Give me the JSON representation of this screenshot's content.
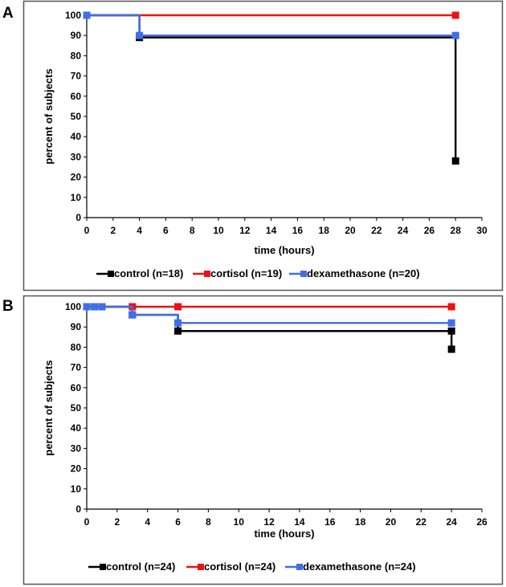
{
  "chart_data": [
    {
      "type": "line",
      "panel": "A",
      "xlabel": "time (hours)",
      "ylabel": "percent of subjects",
      "xlim": [
        0,
        30
      ],
      "ylim": [
        0,
        100
      ],
      "xticks": [
        "0",
        "2",
        "4",
        "6",
        "8",
        "10",
        "12",
        "14",
        "16",
        "18",
        "20",
        "22",
        "24",
        "26",
        "28",
        "30"
      ],
      "yticks": [
        "0",
        "10",
        "20",
        "30",
        "40",
        "50",
        "60",
        "70",
        "80",
        "90",
        "100"
      ],
      "step": true,
      "grid": false,
      "legend_position": "bottom",
      "series": [
        {
          "name": "control (n=18)",
          "color": "#000000",
          "x": [
            0,
            4,
            28
          ],
          "y": [
            100,
            89,
            28
          ]
        },
        {
          "name": "cortisol (n=19)",
          "color": "#ee1111",
          "x": [
            0,
            28
          ],
          "y": [
            100,
            100
          ]
        },
        {
          "name": "dexamethasone (n=20)",
          "color": "#3f6fe8",
          "x": [
            0,
            4,
            28
          ],
          "y": [
            100,
            90,
            90
          ]
        }
      ]
    },
    {
      "type": "line",
      "panel": "B",
      "xlabel": "time (hours)",
      "ylabel": "percent of subjects",
      "xlim": [
        0,
        26
      ],
      "ylim": [
        0,
        100
      ],
      "xticks": [
        "0",
        "2",
        "4",
        "6",
        "8",
        "10",
        "12",
        "14",
        "16",
        "18",
        "20",
        "22",
        "24",
        "26"
      ],
      "yticks": [
        "0",
        "10",
        "20",
        "30",
        "40",
        "50",
        "60",
        "70",
        "80",
        "90",
        "100"
      ],
      "step": true,
      "grid": false,
      "legend_position": "bottom",
      "series": [
        {
          "name": "control (n=24)",
          "color": "#000000",
          "x": [
            0,
            0.5,
            1,
            3,
            6,
            24,
            24
          ],
          "y": [
            100,
            100,
            100,
            96,
            88,
            88,
            79
          ]
        },
        {
          "name": "cortisol (n=24)",
          "color": "#ee1111",
          "x": [
            0,
            0.5,
            1,
            3,
            6,
            24
          ],
          "y": [
            100,
            100,
            100,
            100,
            100,
            100
          ]
        },
        {
          "name": "dexamethasone (n=24)",
          "color": "#3f6fe8",
          "x": [
            0,
            0.5,
            1,
            3,
            6,
            24
          ],
          "y": [
            100,
            100,
            100,
            96,
            92,
            92
          ]
        }
      ]
    }
  ]
}
